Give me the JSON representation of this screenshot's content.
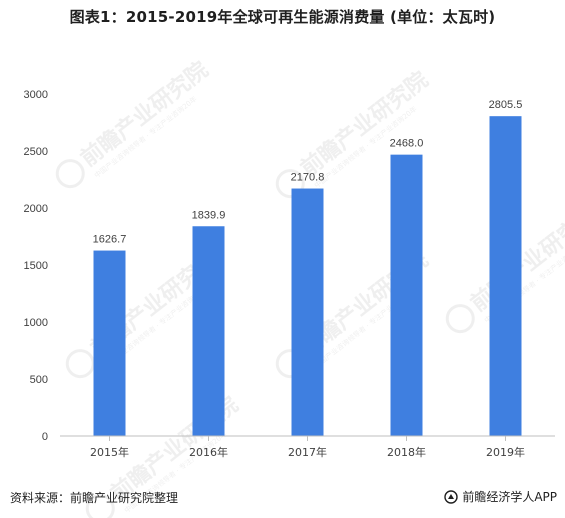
{
  "title": "图表1：2015-2019年全球可再生能源消费量 (单位：太瓦时)",
  "footer": {
    "source": "资料来源：前瞻产业研究院整理",
    "brand": "前瞻经济学人APP"
  },
  "watermark": {
    "text": "前瞻产业研究院",
    "sub": "中国产业咨询领导者 · 专注产业咨询20年"
  },
  "colors": {
    "bar": "#3f7fe0",
    "axis": "#bfbfbf",
    "text": "#404040"
  },
  "chart_data": {
    "type": "bar",
    "categories": [
      "2015年",
      "2016年",
      "2017年",
      "2018年",
      "2019年"
    ],
    "values": [
      1626.7,
      1839.9,
      2170.8,
      2468.0,
      2805.5
    ],
    "value_labels": [
      "1626.7",
      "1839.9",
      "2170.8",
      "2468.0",
      "2805.5"
    ],
    "yticks": [
      0,
      500,
      1000,
      1500,
      2000,
      2500,
      3000
    ],
    "ylim": [
      0,
      3000
    ],
    "grid": false,
    "legend": "none"
  }
}
